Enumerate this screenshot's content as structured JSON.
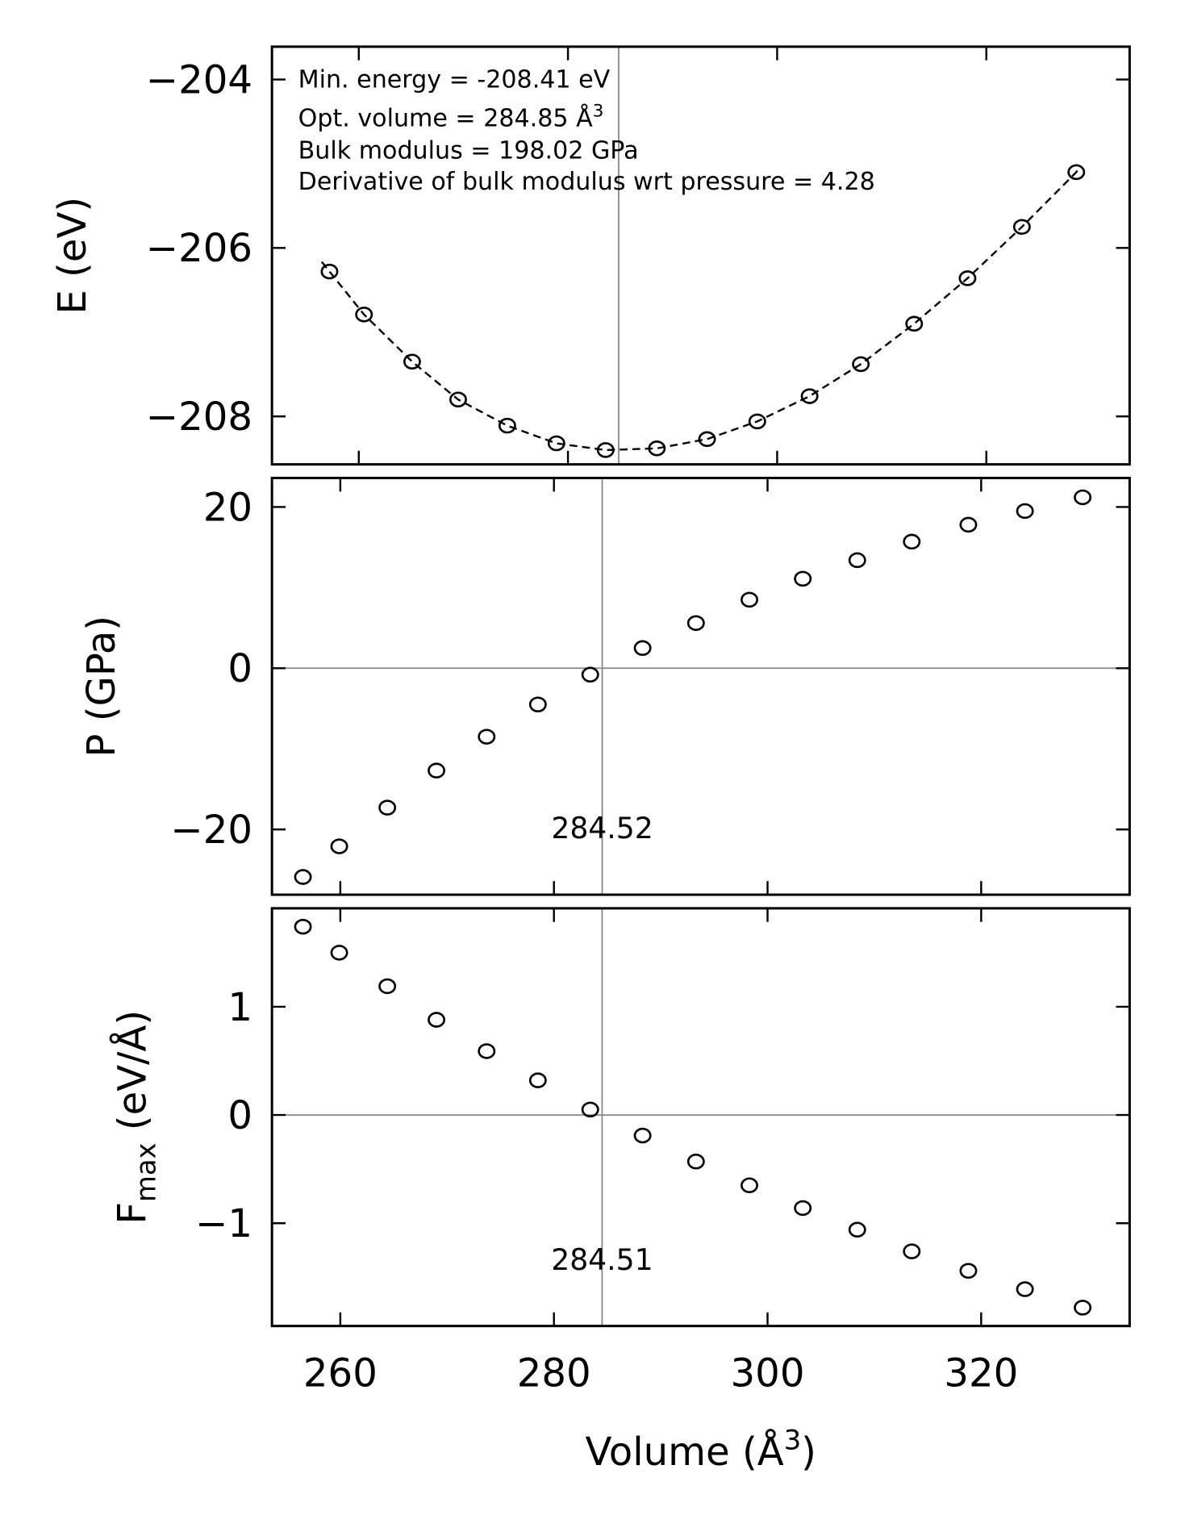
{
  "chart_data": [
    {
      "type": "line",
      "panel": "energy",
      "ylabel": "E (eV)",
      "xlim": [
        251.7,
        333.7
      ],
      "ylim": [
        -208.57,
        -203.61
      ],
      "yticks": [
        -204,
        -206,
        -208
      ],
      "ytick_labels": [
        "−204",
        "−206",
        "−208"
      ],
      "xticks": [
        260,
        280,
        300,
        320
      ],
      "x": [
        257.2,
        260.5,
        265.1,
        269.5,
        274.2,
        278.9,
        283.6,
        288.5,
        293.3,
        298.1,
        303.1,
        308.0,
        313.1,
        318.2,
        323.4,
        328.6
      ],
      "y": [
        -206.28,
        -206.79,
        -207.35,
        -207.8,
        -208.11,
        -208.32,
        -208.4,
        -208.38,
        -208.27,
        -208.06,
        -207.76,
        -207.38,
        -206.9,
        -206.36,
        -205.75,
        -205.1
      ],
      "fit_style": "dashed",
      "vline": 284.85,
      "annotations": [
        "Min. energy = -208.41 eV",
        "Opt. volume = 284.85 Å",
        "Bulk modulus = 198.02 GPa",
        "Derivative of bulk modulus wrt pressure = 4.28"
      ],
      "annotation_sup": "3"
    },
    {
      "type": "scatter",
      "panel": "pressure",
      "ylabel": "P (GPa)",
      "xlim": [
        253.6,
        333.9
      ],
      "ylim": [
        -28.1,
        23.6
      ],
      "yticks": [
        20,
        0,
        -20
      ],
      "ytick_labels": [
        "20",
        "0",
        "−20"
      ],
      "xticks": [
        260,
        280,
        300,
        320
      ],
      "x": [
        256.5,
        259.9,
        264.4,
        269.0,
        273.7,
        278.5,
        283.4,
        288.3,
        293.3,
        298.3,
        303.3,
        308.4,
        313.5,
        318.8,
        324.1,
        329.5
      ],
      "y": [
        -25.9,
        -22.1,
        -17.3,
        -12.7,
        -8.5,
        -4.5,
        -0.8,
        2.5,
        5.6,
        8.5,
        11.1,
        13.4,
        15.7,
        17.8,
        19.5,
        21.2
      ],
      "hline": 0,
      "vline": 284.52,
      "vline_label": "284.52"
    },
    {
      "type": "scatter",
      "panel": "force",
      "ylabel": "F",
      "ylabel_sub": "max",
      "ylabel_unit": " (eV/Å)",
      "xlabel": "Volume (Å",
      "xlabel_sup": "3",
      "xlabel_end": ")",
      "xlim": [
        253.6,
        333.9
      ],
      "ylim": [
        -1.95,
        1.91
      ],
      "yticks": [
        1,
        0,
        -1
      ],
      "ytick_labels": [
        "1",
        "0",
        "−1"
      ],
      "xticks": [
        260,
        280,
        300,
        320
      ],
      "xtick_labels": [
        "260",
        "280",
        "300",
        "320"
      ],
      "x": [
        256.5,
        259.9,
        264.4,
        269.0,
        273.7,
        278.5,
        283.4,
        288.3,
        293.3,
        298.3,
        303.3,
        308.4,
        313.5,
        318.8,
        324.1,
        329.5
      ],
      "y": [
        1.74,
        1.5,
        1.19,
        0.88,
        0.59,
        0.32,
        0.05,
        -0.19,
        -0.43,
        -0.65,
        -0.86,
        -1.06,
        -1.26,
        -1.44,
        -1.61,
        -1.78
      ],
      "hline": 0,
      "vline": 284.51,
      "vline_label": "284.51"
    }
  ]
}
